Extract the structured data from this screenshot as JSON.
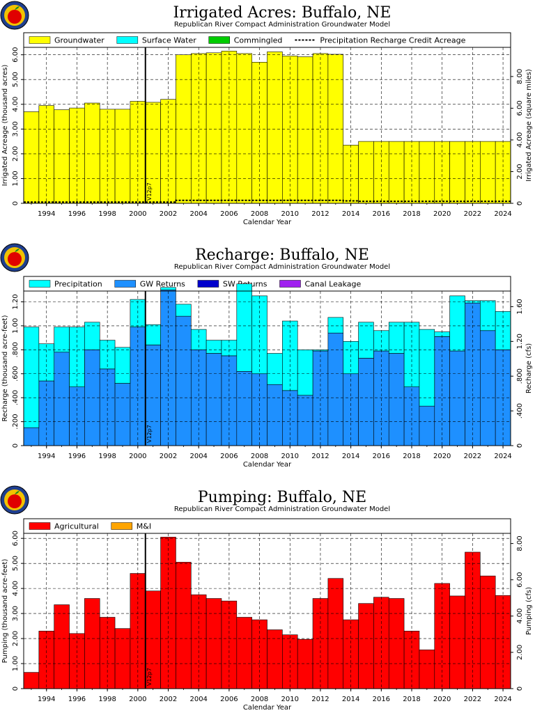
{
  "chart_data": [
    {
      "type": "bar",
      "title": "Irrigated Acres: Buffalo, NE",
      "subtitle": "Republican River Compact Administration Groundwater Model",
      "xlabel": "Calendar Year",
      "ylabel": "Irrigated Acreage (thousand acres)",
      "ylabel_right": "Irrigated Acreage (square miles)",
      "ylim": [
        0,
        6.3
      ],
      "yticks": [
        "0",
        "1.00",
        "2.00",
        "3.00",
        "4.00",
        "5.00",
        "6.00"
      ],
      "ytick_values": [
        0,
        1,
        2,
        3,
        4,
        5,
        6
      ],
      "ylim_right": [
        0,
        9.84
      ],
      "yticks_right": [
        "0",
        "2.00",
        "4.00",
        "6.00",
        "8.00"
      ],
      "ytick_right_values": [
        0,
        2,
        4,
        6,
        8
      ],
      "stacked": true,
      "grid": true,
      "legend_position": "top",
      "legend": [
        {
          "label": "Groundwater",
          "color": "#ffff00"
        },
        {
          "label": "Surface Water",
          "color": "#00ffff"
        },
        {
          "label": "Commingled",
          "color": "#00cc00"
        },
        {
          "label": "Precipitation Recharge Credit Acreage",
          "dashed": true
        }
      ],
      "annotation": "V12p7",
      "annotation_year": 2000.5,
      "x_start": 1993,
      "x_end": 2025,
      "xticks": [
        "1994",
        "1996",
        "1998",
        "2000",
        "2002",
        "2004",
        "2006",
        "2008",
        "2010",
        "2012",
        "2014",
        "2016",
        "2018",
        "2020",
        "2022",
        "2024"
      ],
      "categories": [
        "1993",
        "1994",
        "1995",
        "1996",
        "1997",
        "1998",
        "1999",
        "2000",
        "2001",
        "2002",
        "2003",
        "2004",
        "2005",
        "2006",
        "2007",
        "2008",
        "2009",
        "2010",
        "2011",
        "2012",
        "2013",
        "2014",
        "2015",
        "2016",
        "2017",
        "2018",
        "2019",
        "2020",
        "2021",
        "2022",
        "2023",
        "2024"
      ],
      "series": [
        {
          "name": "Groundwater",
          "color": "#ffff00",
          "values": [
            3.7,
            3.95,
            3.78,
            3.85,
            4.05,
            3.8,
            3.8,
            4.12,
            4.08,
            4.2,
            6.0,
            6.05,
            6.08,
            6.15,
            6.05,
            5.7,
            6.12,
            5.95,
            5.92,
            6.05,
            6.02,
            2.35,
            2.5,
            2.5,
            2.5,
            2.5,
            2.5,
            2.5,
            2.5,
            2.5,
            2.5,
            2.5
          ]
        },
        {
          "name": "Surface Water",
          "color": "#00ffff",
          "values": [
            0,
            0,
            0,
            0,
            0,
            0,
            0,
            0,
            0,
            0,
            0,
            0,
            0,
            0,
            0,
            0,
            0,
            0,
            0,
            0,
            0,
            0,
            0,
            0,
            0,
            0,
            0,
            0,
            0,
            0,
            0,
            0
          ]
        },
        {
          "name": "Commingled",
          "color": "#00cc00",
          "values": [
            0,
            0,
            0,
            0,
            0,
            0,
            0,
            0,
            0,
            0,
            0,
            0,
            0,
            0,
            0,
            0,
            0,
            0,
            0,
            0,
            0,
            0,
            0,
            0,
            0,
            0,
            0,
            0,
            0,
            0,
            0,
            0
          ]
        }
      ],
      "line_series": [
        {
          "name": "Precipitation Recharge Credit Acreage",
          "dashed": true,
          "values": [
            0.05,
            0.05,
            0.05,
            0.05,
            0.05,
            0.05,
            0.05,
            0.05,
            0.05,
            0.05,
            0.12,
            0.12,
            0.12,
            0.12,
            0.12,
            0.12,
            0.12,
            0.12,
            0.12,
            0.12,
            0.12,
            0.1,
            0.08,
            0.08,
            0.08,
            0.08,
            0.08,
            0.08,
            0.08,
            0.08,
            0.08,
            0.08
          ]
        }
      ]
    },
    {
      "type": "bar",
      "title": "Recharge: Buffalo, NE",
      "subtitle": "Republican River Compact Administration Groundwater Model",
      "xlabel": "Calendar Year",
      "ylabel": "Recharge (thousand acre-feet)",
      "ylabel_right": "Recharge (cfs)",
      "ylim": [
        0,
        1.29
      ],
      "yticks": [
        "0",
        ".200",
        ".400",
        ".600",
        ".800",
        "1.00",
        "1.20"
      ],
      "ytick_values": [
        0,
        0.2,
        0.4,
        0.6,
        0.8,
        1.0,
        1.2
      ],
      "ylim_right": [
        0,
        1.78
      ],
      "yticks_right": [
        "0",
        ".400",
        ".800",
        "1.20",
        "1.60"
      ],
      "ytick_right_values": [
        0,
        0.4,
        0.8,
        1.2,
        1.6
      ],
      "stacked": true,
      "grid": true,
      "legend_position": "top",
      "legend": [
        {
          "label": "Precipitation",
          "color": "#00ffff"
        },
        {
          "label": "GW Returns",
          "color": "#1e90ff"
        },
        {
          "label": "SW Returns",
          "color": "#0000cc"
        },
        {
          "label": "Canal Leakage",
          "color": "#a020f0"
        }
      ],
      "annotation": "V12p7",
      "annotation_year": 2000.5,
      "x_start": 1993,
      "x_end": 2025,
      "xticks": [
        "1994",
        "1996",
        "1998",
        "2000",
        "2002",
        "2004",
        "2006",
        "2008",
        "2010",
        "2012",
        "2014",
        "2016",
        "2018",
        "2020",
        "2022",
        "2024"
      ],
      "categories": [
        "1993",
        "1994",
        "1995",
        "1996",
        "1997",
        "1998",
        "1999",
        "2000",
        "2001",
        "2002",
        "2003",
        "2004",
        "2005",
        "2006",
        "2007",
        "2008",
        "2009",
        "2010",
        "2011",
        "2012",
        "2013",
        "2014",
        "2015",
        "2016",
        "2017",
        "2018",
        "2019",
        "2020",
        "2021",
        "2022",
        "2023",
        "2024"
      ],
      "series": [
        {
          "name": "GW Returns",
          "color": "#1e90ff",
          "values": [
            0.15,
            0.54,
            0.78,
            0.49,
            0.8,
            0.64,
            0.52,
            0.99,
            0.84,
            1.3,
            1.08,
            0.8,
            0.77,
            0.75,
            0.62,
            0.6,
            0.51,
            0.46,
            0.42,
            0.79,
            0.94,
            0.6,
            0.73,
            0.79,
            0.77,
            0.49,
            0.33,
            0.91,
            0.79,
            1.19,
            0.96,
            0.8
          ]
        },
        {
          "name": "Precipitation",
          "color": "#00ffff",
          "values": [
            0.84,
            0.31,
            0.21,
            0.5,
            0.23,
            0.24,
            0.3,
            0.23,
            0.17,
            0.02,
            0.1,
            0.17,
            0.11,
            0.13,
            0.73,
            0.65,
            0.26,
            0.58,
            0.38,
            0.01,
            0.13,
            0.27,
            0.3,
            0.17,
            0.26,
            0.54,
            0.64,
            0.04,
            0.46,
            0.02,
            0.25,
            0.32
          ]
        },
        {
          "name": "SW Returns",
          "color": "#0000cc",
          "values": [
            0,
            0,
            0,
            0,
            0,
            0,
            0,
            0,
            0,
            0,
            0,
            0,
            0,
            0,
            0,
            0,
            0,
            0,
            0,
            0,
            0,
            0,
            0,
            0,
            0,
            0,
            0,
            0,
            0,
            0,
            0,
            0
          ]
        },
        {
          "name": "Canal Leakage",
          "color": "#a020f0",
          "values": [
            0,
            0,
            0,
            0,
            0,
            0,
            0,
            0,
            0,
            0,
            0,
            0,
            0,
            0,
            0,
            0,
            0,
            0,
            0,
            0,
            0,
            0,
            0,
            0,
            0,
            0,
            0,
            0,
            0,
            0,
            0,
            0
          ]
        }
      ]
    },
    {
      "type": "bar",
      "title": "Pumping: Buffalo, NE",
      "subtitle": "Republican River Compact Administration Groundwater Model",
      "xlabel": "Calendar Year",
      "ylabel": "Pumping (thousand acre-feet)",
      "ylabel_right": "Pumping (cfs)",
      "ylim": [
        0,
        6.2
      ],
      "yticks": [
        "0",
        "1.00",
        "2.00",
        "3.00",
        "4.00",
        "5.00",
        "6.00"
      ],
      "ytick_values": [
        0,
        1,
        2,
        3,
        4,
        5,
        6
      ],
      "ylim_right": [
        0,
        8.56
      ],
      "yticks_right": [
        "0",
        "2.00",
        "4.00",
        "6.00",
        "8.00"
      ],
      "ytick_right_values": [
        0,
        2,
        4,
        6,
        8
      ],
      "stacked": true,
      "grid": true,
      "legend_position": "top",
      "legend": [
        {
          "label": "Agricultural",
          "color": "#ff0000"
        },
        {
          "label": "M&I",
          "color": "#ffa500"
        }
      ],
      "annotation": "V12p7",
      "annotation_year": 2000.5,
      "x_start": 1993,
      "x_end": 2025,
      "xticks": [
        "1994",
        "1996",
        "1998",
        "2000",
        "2002",
        "2004",
        "2006",
        "2008",
        "2010",
        "2012",
        "2014",
        "2016",
        "2018",
        "2020",
        "2022",
        "2024"
      ],
      "categories": [
        "1993",
        "1994",
        "1995",
        "1996",
        "1997",
        "1998",
        "1999",
        "2000",
        "2001",
        "2002",
        "2003",
        "2004",
        "2005",
        "2006",
        "2007",
        "2008",
        "2009",
        "2010",
        "2011",
        "2012",
        "2013",
        "2014",
        "2015",
        "2016",
        "2017",
        "2018",
        "2019",
        "2020",
        "2021",
        "2022",
        "2023",
        "2024"
      ],
      "series": [
        {
          "name": "Agricultural",
          "color": "#ff0000",
          "values": [
            0.65,
            2.3,
            3.35,
            2.2,
            3.6,
            2.85,
            2.4,
            4.6,
            3.9,
            6.05,
            5.05,
            3.75,
            3.6,
            3.5,
            2.85,
            2.75,
            2.35,
            2.15,
            1.97,
            3.6,
            4.4,
            2.75,
            3.4,
            3.65,
            3.6,
            2.3,
            1.55,
            4.2,
            3.7,
            5.45,
            4.5,
            3.72
          ]
        },
        {
          "name": "M&I",
          "color": "#ffa500",
          "values": [
            0,
            0,
            0,
            0,
            0,
            0,
            0,
            0,
            0,
            0,
            0,
            0,
            0,
            0,
            0,
            0,
            0,
            0,
            0,
            0,
            0,
            0,
            0,
            0,
            0,
            0,
            0,
            0,
            0,
            0,
            0,
            0
          ]
        }
      ]
    }
  ]
}
